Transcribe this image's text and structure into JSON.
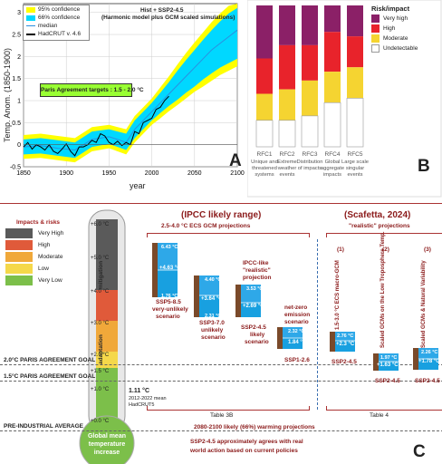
{
  "panelA": {
    "letter": "A",
    "legend": [
      "95% confidence",
      "66% confidence",
      "median",
      "HadCRUT v. 4.6"
    ],
    "header_line1": "Hist + SSP2-4.5",
    "header_line2": "(Harmonic model plus GCM scaled simulations)",
    "annotation": "Paris Agreement targets :  1.5 - 2.0 °C",
    "ylabel": "Temp. Anom. (1850-1900)",
    "xlabel": "year",
    "colors": {
      "ci95": "#ffff00",
      "ci66": "#00d8ff",
      "median": "#2b8fe0",
      "obs": "#000000",
      "annotation_bg": "#99ff33"
    },
    "chart_data": {
      "type": "line",
      "x_ticks": [
        1850,
        1900,
        1950,
        2000,
        2050,
        2100
      ],
      "y_ticks": [
        -0.5,
        0,
        0.5,
        1,
        1.5,
        2,
        2.5,
        3
      ],
      "xlim": [
        1850,
        2100
      ],
      "ylim": [
        -0.5,
        3.2
      ],
      "band_x": [
        1850,
        1870,
        1890,
        1910,
        1930,
        1950,
        1960,
        1970,
        1980,
        1990,
        2000,
        2010,
        2020,
        2030,
        2040,
        2050,
        2060,
        2070,
        2080,
        2090,
        2100
      ],
      "median": [
        -0.05,
        -0.02,
        -0.08,
        -0.12,
        0.12,
        0.18,
        0.12,
        0.05,
        0.35,
        0.55,
        0.75,
        0.95,
        1.15,
        1.35,
        1.55,
        1.75,
        1.95,
        2.15,
        2.3,
        2.45,
        2.6
      ],
      "ci66_low": [
        -0.22,
        -0.2,
        -0.25,
        -0.3,
        -0.05,
        0.02,
        -0.05,
        -0.12,
        0.15,
        0.35,
        0.55,
        0.72,
        0.88,
        1.02,
        1.18,
        1.32,
        1.48,
        1.62,
        1.75,
        1.85,
        1.95
      ],
      "ci66_high": [
        0.12,
        0.15,
        0.1,
        0.05,
        0.3,
        0.35,
        0.3,
        0.25,
        0.55,
        0.75,
        0.95,
        1.18,
        1.42,
        1.68,
        1.92,
        2.15,
        2.38,
        2.6,
        2.8,
        2.98,
        3.1
      ],
      "ci95_low": [
        -0.32,
        -0.3,
        -0.35,
        -0.4,
        -0.15,
        -0.08,
        -0.15,
        -0.22,
        0.05,
        0.25,
        0.45,
        0.6,
        0.76,
        0.9,
        1.05,
        1.2,
        1.32,
        1.45,
        1.58,
        1.68,
        1.78
      ],
      "ci95_high": [
        0.22,
        0.25,
        0.2,
        0.15,
        0.4,
        0.45,
        0.4,
        0.35,
        0.65,
        0.85,
        1.05,
        1.3,
        1.55,
        1.82,
        2.08,
        2.32,
        2.55,
        2.78,
        2.98,
        3.15,
        3.2
      ],
      "obs_x": [
        1850,
        1855,
        1860,
        1865,
        1870,
        1875,
        1880,
        1885,
        1890,
        1895,
        1900,
        1905,
        1910,
        1915,
        1920,
        1925,
        1930,
        1935,
        1940,
        1945,
        1950,
        1955,
        1960,
        1965,
        1970,
        1975,
        1980,
        1985,
        1990,
        1995,
        2000,
        2005,
        2010,
        2015,
        2020
      ],
      "obs_y": [
        -0.05,
        0.05,
        -0.1,
        0.0,
        -0.05,
        -0.12,
        0.0,
        -0.15,
        -0.2,
        -0.1,
        0.02,
        -0.15,
        -0.25,
        -0.05,
        -0.05,
        0.0,
        0.1,
        0.05,
        0.25,
        0.2,
        0.05,
        0.0,
        0.08,
        -0.02,
        0.05,
        0.0,
        0.3,
        0.25,
        0.5,
        0.55,
        0.6,
        0.8,
        0.85,
        1.0,
        1.1
      ]
    }
  },
  "panelB": {
    "letter": "B",
    "legend_title": "Risk/impact",
    "legend_items": [
      "Very high",
      "High",
      "Moderate",
      "Undetectable"
    ],
    "colors": {
      "very_high": "#8b2067",
      "high": "#e8232b",
      "moderate": "#f5d431",
      "undetectable": "#ffffff"
    },
    "bars": [
      {
        "id": "RFC1",
        "desc": [
          "Unique and",
          "threatened",
          "systems"
        ],
        "levels": {
          "very_high": 2.0,
          "high": 1.2,
          "moderate": 0.6,
          "top": 3.2
        }
      },
      {
        "id": "RFC2",
        "desc": [
          "Extreme",
          "weather",
          "events"
        ],
        "levels": {
          "very_high": 2.3,
          "high": 1.3,
          "moderate": 0.6,
          "top": 3.2
        }
      },
      {
        "id": "RFC3",
        "desc": [
          "Distribution",
          "of impacts"
        ],
        "levels": {
          "very_high": 2.3,
          "high": 1.5,
          "moderate": 0.7,
          "top": 3.2
        }
      },
      {
        "id": "RFC4",
        "desc": [
          "Global",
          "aggregate",
          "impacts"
        ],
        "levels": {
          "very_high": 2.6,
          "high": 1.7,
          "moderate": 1.0,
          "top": 3.2
        }
      },
      {
        "id": "RFC5",
        "desc": [
          "Large scale",
          "singular",
          "events"
        ],
        "levels": {
          "very_high": 2.5,
          "high": 1.8,
          "moderate": 1.1,
          "top": 3.2
        }
      }
    ]
  },
  "panelC": {
    "letter": "C",
    "impacts_title": "Impacts & risks",
    "impacts": [
      {
        "label": "Very High",
        "color": "#5a5a5a"
      },
      {
        "label": "High",
        "color": "#e05a3a"
      },
      {
        "label": "Moderate",
        "color": "#f0a83a"
      },
      {
        "label": "Low",
        "color": "#f5d84a"
      },
      {
        "label": "Very Low",
        "color": "#7cbf4a"
      }
    ],
    "thermo_ticks": [
      "+6.0 °C",
      "+5.0 °C",
      "+4.0 °C",
      "+3.0 °C",
      "+2.0 °C",
      "+1.5 °C",
      "+1.0 °C",
      "+0.0 °C"
    ],
    "mitigation": "mitigation",
    "adaptation": "adaptation",
    "goal_20": "2.0°C PARIS AGREEMENT GOAL",
    "goal_15": "1.5°C PARIS AGREEMENT GOAL",
    "pre_industrial": "PRE-INDUSTRIAL AVERAGE",
    "obs_value": "1.11 °C",
    "obs_note1": "2012-2022 mean",
    "obs_note2": "HadCRUT5",
    "bulb_text": [
      "Global mean",
      "temperature",
      "increase"
    ],
    "ipcc_title": "(IPCC likely range)",
    "ipcc_sub": "2.5-4.0 °C  ECS GCM projections",
    "scafetta_title": "(Scafetta, 2024)",
    "scafetta_sub": "\"realistic\" projections",
    "table3b": "Table 3B",
    "table4": "Table 4",
    "footer1": "2080-2100 likely (66%) warming projections",
    "footer2": "SSP2-4.5 approximately agrees with real",
    "footer3": "world action based on current policies",
    "ipcc_bars": [
      {
        "top": "6.43 °C",
        "mid": "+4.63 °C",
        "bot": "1.76 °C",
        "label": [
          "SSP5-8.5",
          "very-unlikely",
          "scenario"
        ]
      },
      {
        "top": "4.40 °C",
        "mid": "+3.64 °C",
        "bot": "2.31 °C",
        "label": [
          "SSP3-7.0",
          "unlikely",
          "scenario"
        ]
      },
      {
        "top": "3.53 °C",
        "mid": "+2.69 °C",
        "bot": "2.24 °C",
        "label": [
          "SSP2-4.5",
          "likely",
          "scenario"
        ],
        "head": [
          "IPCC-like",
          "\"realistic\"",
          "projection"
        ]
      },
      {
        "top": "2.32 °C",
        "mid": "1.84 °C",
        "bot": "1.43 °C",
        "label": [
          "SSP1-2.6"
        ],
        "head": [
          "net-zero",
          "emission",
          "scenario"
        ]
      }
    ],
    "scafetta_bars": [
      {
        "num": "(1)",
        "vtext": "1.5-3.0 °C ECS macro-GCM",
        "top": "2.76 °C",
        "mid": "+2.3 °C",
        "bot": "1.90 °C",
        "label": "SSP2-4.5"
      },
      {
        "num": "(2)",
        "vtext": "Scaled GCMs on the Low Troposphere Temp.",
        "top": "1.97 °C",
        "mid": "+1.63 °C",
        "bot": "1.36 °C",
        "label": "SSP2-4.5"
      },
      {
        "num": "(3)",
        "vtext": "Scaled GCMs & Natural Variability",
        "top": "2.26 °C",
        "mid": "+1.78 °C",
        "bot": "1.39 °C",
        "label": "SSP2-4.5"
      }
    ]
  }
}
